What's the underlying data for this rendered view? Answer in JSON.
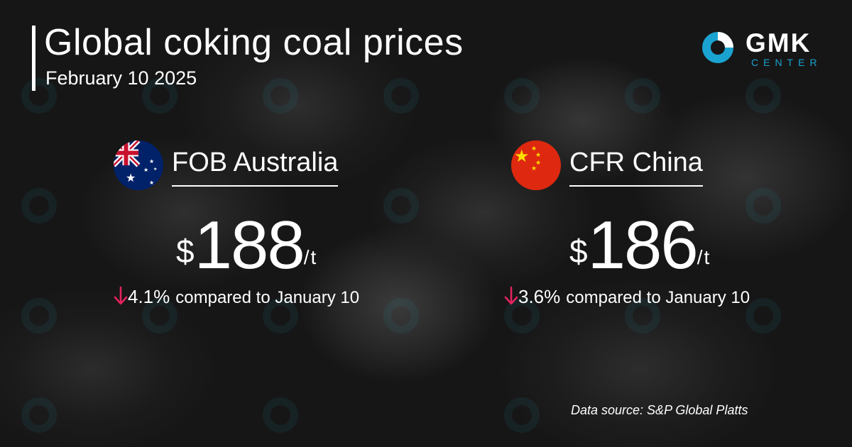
{
  "header": {
    "title": "Global coking coal prices",
    "date": "February 10 2025"
  },
  "logo": {
    "name": "GMK",
    "sub": "CENTER",
    "ring_color": "#1aa3d0",
    "icon": "gmk-ring-icon"
  },
  "markets": [
    {
      "name": "FOB Australia",
      "flag": "australia-flag-icon",
      "currency": "$",
      "price": "188",
      "unit": "/t",
      "change": "4.1%",
      "direction": "down",
      "compared": "compared to January 10"
    },
    {
      "name": "CFR China",
      "flag": "china-flag-icon",
      "currency": "$",
      "price": "186",
      "unit": "/t",
      "change": "3.6%",
      "direction": "down",
      "compared": "compared to January 10"
    }
  ],
  "footer": {
    "source": "Data source: S&P Global Platts"
  },
  "colors": {
    "accent": "#1aa3d0",
    "down_arrow": "#e0245e",
    "text": "#ffffff"
  }
}
